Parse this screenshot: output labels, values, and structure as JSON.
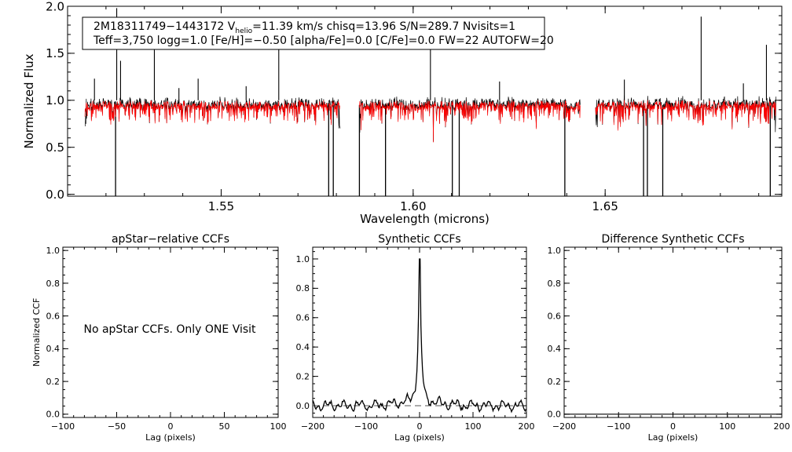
{
  "chart_data": [
    {
      "type": "line",
      "id": "spectrum",
      "xlabel": "Wavelength (microns)",
      "ylabel": "Normalized Flux",
      "xlim": [
        1.51,
        1.696
      ],
      "ylim": [
        -0.02,
        2.0
      ],
      "xticks": [
        1.55,
        1.6,
        1.65
      ],
      "xtick_labels": [
        "1.55",
        "1.60",
        "1.65"
      ],
      "yticks": [
        0.0,
        0.5,
        1.0,
        1.5,
        2.0
      ],
      "ytick_labels": [
        "0.0",
        "0.5",
        "1.0",
        "1.5",
        "2.0"
      ],
      "info_line1": {
        "id": "2M18311749−1443172",
        "vhelio_prefix": "V",
        "vhelio_sub": "helio",
        "vhelio_value": "=11.39 km/s",
        "chisq": "chisq=13.96",
        "snr": "S/N=289.7",
        "nvisits": "Nvisits=1"
      },
      "info_line2": "Teff=3,750 logg=1.0 [Fe/H]=−0.50 [alpha/Fe]=0.0 [C/Fe]=0.0 FW=22 AUTOFW=20",
      "series": [
        {
          "name": "observed",
          "color": "#000000"
        },
        {
          "name": "model",
          "color": "#ff0000"
        }
      ],
      "chips": [
        [
          1.5145,
          1.581
        ],
        [
          1.586,
          1.6435
        ],
        [
          1.6475,
          1.6945
        ]
      ],
      "emission_spikes": [
        [
          1.5228,
          1.98
        ],
        [
          1.5238,
          1.42
        ],
        [
          1.517,
          1.23
        ],
        [
          1.5326,
          1.68
        ],
        [
          1.539,
          1.13
        ],
        [
          1.544,
          1.23
        ],
        [
          1.5565,
          1.15
        ],
        [
          1.565,
          1.63
        ],
        [
          1.6045,
          1.63
        ],
        [
          1.6225,
          1.2
        ],
        [
          1.655,
          1.22
        ],
        [
          1.675,
          1.89
        ],
        [
          1.686,
          1.18
        ],
        [
          1.692,
          1.59
        ]
      ],
      "absorption_spikes": [
        [
          1.5225,
          -0.02
        ],
        [
          1.578,
          -0.02
        ],
        [
          1.5792,
          -0.02
        ],
        [
          1.586,
          -0.02
        ],
        [
          1.5928,
          -0.02
        ],
        [
          1.6102,
          -0.02
        ],
        [
          1.612,
          -0.02
        ],
        [
          1.6395,
          -0.02
        ],
        [
          1.66,
          -0.02
        ],
        [
          1.661,
          -0.02
        ],
        [
          1.665,
          -0.02
        ],
        [
          1.693,
          -0.02
        ]
      ]
    },
    {
      "type": "line",
      "id": "apstar_ccf",
      "title": "apStar−relative CCFs",
      "xlabel": "Lag (pixels)",
      "ylabel": "Normalized CCF",
      "xlim": [
        -100,
        100
      ],
      "ylim": [
        -0.02,
        1.02
      ],
      "xticks": [
        -100,
        -50,
        0,
        50,
        100
      ],
      "xtick_labels": [
        "−100",
        "−50",
        "0",
        "50",
        "100"
      ],
      "yticks": [
        0.0,
        0.2,
        0.4,
        0.6,
        0.8,
        1.0
      ],
      "ytick_labels": [
        "0.0",
        "0.2",
        "0.4",
        "0.6",
        "0.8",
        "1.0"
      ],
      "annotation": "No apStar CCFs.  Only ONE Visit"
    },
    {
      "type": "line",
      "id": "synthetic_ccf",
      "title": "Synthetic CCFs",
      "xlabel": "Lag (pixels)",
      "ylabel": "",
      "xlim": [
        -200,
        200
      ],
      "ylim": [
        -0.08,
        1.08
      ],
      "xticks": [
        -200,
        -100,
        0,
        100,
        200
      ],
      "xtick_labels": [
        "−200",
        "−100",
        "0",
        "100",
        "200"
      ],
      "yticks": [
        0.0,
        0.2,
        0.4,
        0.6,
        0.8,
        1.0
      ],
      "ytick_labels": [
        "0.0",
        "0.2",
        "0.4",
        "0.6",
        "0.8",
        "1.0"
      ],
      "baseline": 0.0,
      "peak": {
        "x": 0,
        "y": 1.0
      }
    },
    {
      "type": "line",
      "id": "difference_ccf",
      "title": "Difference Synthetic CCFs",
      "xlabel": "Lag (pixels)",
      "ylabel": "",
      "xlim": [
        -200,
        200
      ],
      "ylim": [
        -0.02,
        1.02
      ],
      "xticks": [
        -200,
        -100,
        0,
        100,
        200
      ],
      "xtick_labels": [
        "−200",
        "−100",
        "0",
        "100",
        "200"
      ],
      "yticks": [
        0.0,
        0.2,
        0.4,
        0.6,
        0.8,
        1.0
      ],
      "ytick_labels": [
        "0.0",
        "0.2",
        "0.4",
        "0.6",
        "0.8",
        "1.0"
      ],
      "values": [
        0.0,
        0.0
      ]
    }
  ]
}
